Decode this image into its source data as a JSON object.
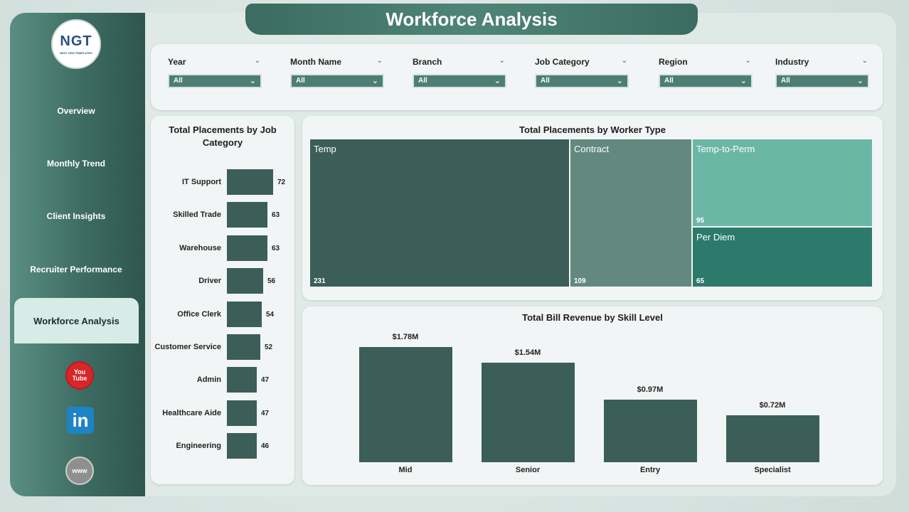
{
  "header": {
    "title": "Workforce Analysis"
  },
  "logo": {
    "mark": "NGT",
    "sub": "NEXT GEN TEMPLATES"
  },
  "nav": {
    "items": [
      {
        "label": "Overview"
      },
      {
        "label": "Monthly Trend"
      },
      {
        "label": "Client Insights"
      },
      {
        "label": "Recruiter Performance"
      },
      {
        "label": "Workforce Analysis"
      }
    ],
    "active": "Workforce Analysis"
  },
  "social": {
    "youtube": {
      "icon": "youtube-icon",
      "text": "You Tube"
    },
    "linkedin": {
      "icon": "linkedin-icon",
      "text": "in"
    },
    "website": {
      "icon": "globe-icon",
      "text": "www"
    }
  },
  "filters": [
    {
      "label": "Year",
      "value": "All"
    },
    {
      "label": "Month Name",
      "value": "All"
    },
    {
      "label": "Branch",
      "value": "All"
    },
    {
      "label": "Job Category",
      "value": "All"
    },
    {
      "label": "Region",
      "value": "All"
    },
    {
      "label": "Industry",
      "value": "All"
    }
  ],
  "colors": {
    "accent": "#3b5e58",
    "sidebar": "#3d6b62",
    "temp": "#3b5e58",
    "contract": "#63897f",
    "temp_to_perm": "#6bb7a6",
    "per_diem": "#2b7a6b"
  },
  "chart_data": [
    {
      "type": "bar",
      "orientation": "horizontal",
      "title": "Total Placements by Job Category",
      "categories": [
        "IT Support",
        "Skilled Trade",
        "Warehouse",
        "Driver",
        "Office Clerk",
        "Customer Service",
        "Admin",
        "Healthcare Aide",
        "Engineering"
      ],
      "values": [
        72,
        63,
        63,
        56,
        54,
        52,
        47,
        47,
        46
      ]
    },
    {
      "type": "treemap",
      "title": "Total Placements by Worker Type",
      "categories": [
        "Temp",
        "Contract",
        "Temp-to-Perm",
        "Per Diem"
      ],
      "values": [
        231,
        109,
        95,
        65
      ]
    },
    {
      "type": "bar",
      "title": "Total Bill Revenue by Skill Level",
      "categories": [
        "Mid",
        "Senior",
        "Entry",
        "Specialist"
      ],
      "values": [
        1.78,
        1.54,
        0.97,
        0.72
      ],
      "value_labels": [
        "$1.78M",
        "$1.54M",
        "$0.97M",
        "$0.72M"
      ],
      "unit": "$M"
    }
  ]
}
